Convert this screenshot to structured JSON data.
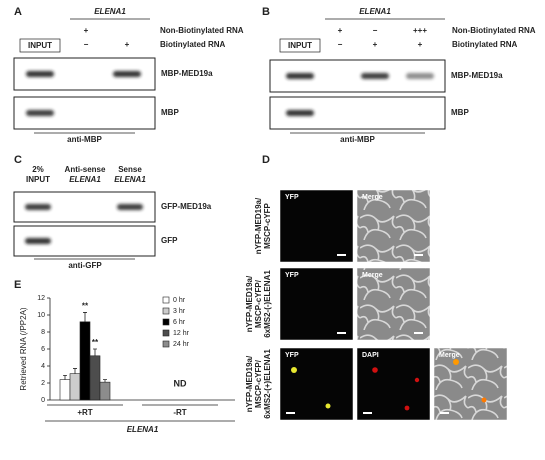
{
  "panels": {
    "A": {
      "letter": "A",
      "gene": "ELENA1",
      "input": "INPUT",
      "conditions": [
        {
          "label": "Non-Biotinylated RNA",
          "marks": [
            "+",
            null
          ]
        },
        {
          "label": "Biotinylated RNA",
          "marks": [
            "−",
            "+"
          ]
        }
      ],
      "blots": [
        "MBP-MED19a",
        "MBP"
      ],
      "antibody": "anti-MBP"
    },
    "B": {
      "letter": "B",
      "gene": "ELENA1",
      "input": "INPUT",
      "conditions": [
        {
          "label": "Non-Biotinylated RNA",
          "marks": [
            "+",
            "−",
            "+++"
          ]
        },
        {
          "label": "Biotinylated RNA",
          "marks": [
            "−",
            "+",
            "+"
          ]
        }
      ],
      "blots": [
        "MBP-MED19a",
        "MBP"
      ],
      "antibody": "anti-MBP"
    },
    "C": {
      "letter": "C",
      "lanes": [
        [
          "2%",
          "INPUT"
        ],
        [
          "Anti-sense",
          "ELENA1"
        ],
        [
          "Sense",
          "ELENA1"
        ]
      ],
      "blots": [
        "GFP-MED19a",
        "GFP"
      ],
      "antibody": "anti-GFP"
    },
    "D": {
      "letter": "D",
      "rows": [
        {
          "label": [
            "nYFP-MED19a/",
            "MSCP-cYFP"
          ],
          "channels": [
            "YFP",
            "Merge"
          ]
        },
        {
          "label": [
            "nYFP-MED19a/",
            "MSCP-cYFP/",
            "6xMS2-(-)ELENA1"
          ],
          "channels": [
            "YFP",
            "Merge"
          ]
        },
        {
          "label": [
            "nYFP-MED19a/",
            "MSCP-cYFP/",
            "6xMS2-(+)ELENA1"
          ],
          "channels": [
            "YFP",
            "DAPI",
            "Merge"
          ]
        }
      ]
    }
  },
  "chart_data": {
    "type": "bar",
    "panel": "E",
    "ylabel": "Retrieved RNA (/PP2A)",
    "xlabel": "ELENA1",
    "categories": [
      "+RT",
      "-RT"
    ],
    "not_detected": "ND",
    "ylim": [
      0,
      12
    ],
    "yticks": [
      0,
      2,
      4,
      6,
      8,
      10,
      12
    ],
    "series": [
      {
        "name": "0 hr",
        "color": "#ffffff",
        "values": [
          2.4,
          null
        ],
        "errors": [
          0.5,
          null
        ]
      },
      {
        "name": "3 hr",
        "color": "#cccccc",
        "values": [
          3.1,
          null
        ],
        "errors": [
          0.6,
          null
        ]
      },
      {
        "name": "6 hr",
        "color": "#000000",
        "values": [
          9.2,
          null
        ],
        "errors": [
          1.1,
          null
        ],
        "annotations": [
          "**",
          null
        ]
      },
      {
        "name": "12 hr",
        "color": "#4d4d4d",
        "values": [
          5.2,
          null
        ],
        "errors": [
          0.8,
          null
        ],
        "annotations": [
          "**",
          null
        ]
      },
      {
        "name": "24 hr",
        "color": "#8c8c8c",
        "values": [
          2.1,
          null
        ],
        "errors": [
          0.3,
          null
        ]
      }
    ]
  }
}
